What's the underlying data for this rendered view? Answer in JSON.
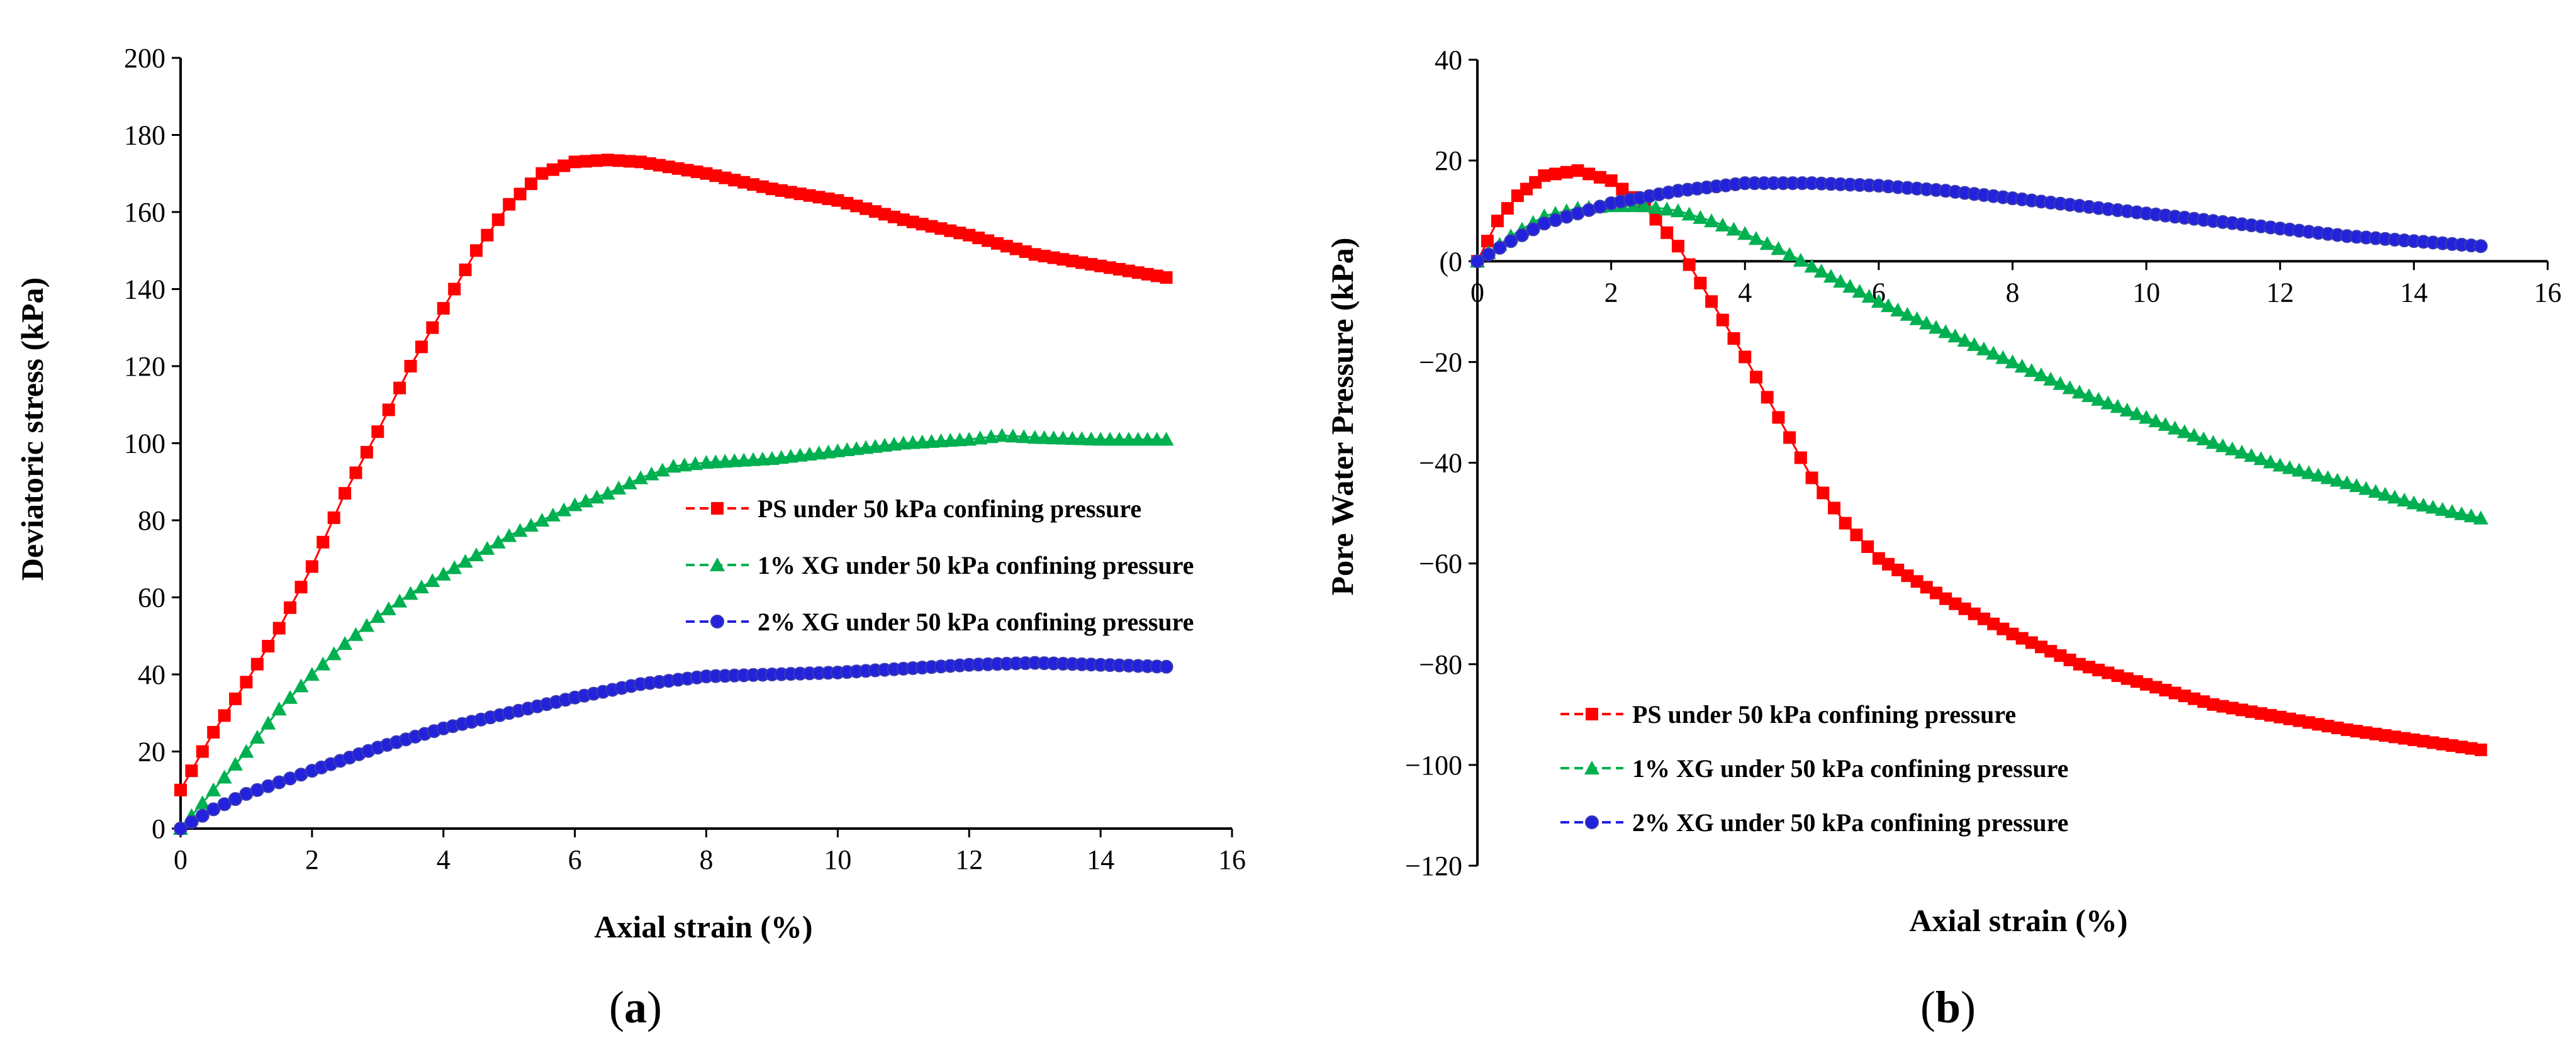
{
  "chart_data": [
    {
      "type": "scatter",
      "panel_label": {
        "open": "(",
        "letter": "a",
        "close": ")"
      },
      "xlabel": "Axial strain (%)",
      "ylabel": "Deviatoric stress (kPa)",
      "xlim": [
        0,
        16
      ],
      "ylim": [
        0,
        200
      ],
      "xticks": [
        0,
        2,
        4,
        6,
        8,
        10,
        12,
        14,
        16
      ],
      "yticks": [
        0,
        20,
        40,
        60,
        80,
        100,
        120,
        140,
        160,
        180,
        200
      ],
      "grid": false,
      "legend_position": "center-right",
      "series": [
        {
          "name": "PS under 50 kPa confining pressure",
          "color": "#ff0000",
          "marker": "square",
          "points": [
            [
              0,
              10
            ],
            [
              0.5,
              25
            ],
            [
              1,
              38
            ],
            [
              1.5,
              52
            ],
            [
              2,
              68
            ],
            [
              2.5,
              87
            ],
            [
              3,
              103
            ],
            [
              3.5,
              120
            ],
            [
              4,
              135
            ],
            [
              4.5,
              150
            ],
            [
              5,
              162
            ],
            [
              5.5,
              170
            ],
            [
              6,
              173
            ],
            [
              6.5,
              173.5
            ],
            [
              7,
              173
            ],
            [
              8,
              170
            ],
            [
              9,
              166
            ],
            [
              10,
              163
            ],
            [
              11,
              158
            ],
            [
              12,
              154
            ],
            [
              13,
              149
            ],
            [
              14,
              146
            ],
            [
              15,
              143
            ]
          ]
        },
        {
          "name": "1% XG under 50 kPa confining pressure",
          "color": "#00b050",
          "marker": "triangle",
          "points": [
            [
              0,
              0
            ],
            [
              0.5,
              10
            ],
            [
              1,
              20
            ],
            [
              1.5,
              31
            ],
            [
              2,
              40
            ],
            [
              2.5,
              48
            ],
            [
              3,
              55
            ],
            [
              3.5,
              61
            ],
            [
              4,
              66
            ],
            [
              4.5,
              71
            ],
            [
              5,
              76
            ],
            [
              5.5,
              80
            ],
            [
              6,
              84
            ],
            [
              6.5,
              87
            ],
            [
              7,
              91
            ],
            [
              7.5,
              94
            ],
            [
              8,
              95
            ],
            [
              9,
              96
            ],
            [
              10,
              98
            ],
            [
              11,
              100
            ],
            [
              12,
              101
            ],
            [
              12.5,
              102
            ],
            [
              13,
              101.5
            ],
            [
              14,
              101
            ],
            [
              15,
              101
            ]
          ]
        },
        {
          "name": "2% XG under 50 kPa confining pressure",
          "color": "#2222dd",
          "marker": "circle",
          "points": [
            [
              0,
              0
            ],
            [
              0.5,
              5
            ],
            [
              1,
              9
            ],
            [
              1.5,
              12
            ],
            [
              2,
              15
            ],
            [
              3,
              21
            ],
            [
              4,
              26
            ],
            [
              5,
              30
            ],
            [
              6,
              34
            ],
            [
              7,
              37.5
            ],
            [
              8,
              39.5
            ],
            [
              9,
              40
            ],
            [
              10,
              40.5
            ],
            [
              11,
              41.5
            ],
            [
              12,
              42.5
            ],
            [
              13,
              43
            ],
            [
              14,
              42.5
            ],
            [
              15,
              42
            ]
          ]
        }
      ]
    },
    {
      "type": "scatter",
      "panel_label": {
        "open": "(",
        "letter": "b",
        "close": ")"
      },
      "xlabel": "Axial strain (%)",
      "ylabel": "Pore Water Pressure (kPa)",
      "xlim": [
        0,
        16
      ],
      "ylim": [
        -120,
        40
      ],
      "xticks": [
        0,
        2,
        4,
        6,
        8,
        10,
        12,
        14,
        16
      ],
      "yticks": [
        40,
        20,
        0,
        -20,
        -40,
        -60,
        -80,
        -100,
        -120
      ],
      "ytick_labels": [
        "40",
        "20",
        "(0",
        "−20",
        "−40",
        "−60",
        "−80",
        "−100",
        "−120"
      ],
      "grid": false,
      "legend_position": "bottom-center",
      "series": [
        {
          "name": "PS under 50 kPa confining pressure",
          "color": "#ff0000",
          "marker": "square",
          "points": [
            [
              0,
              0
            ],
            [
              0.3,
              8
            ],
            [
              0.6,
              13
            ],
            [
              1,
              17
            ],
            [
              1.5,
              18
            ],
            [
              2,
              16
            ],
            [
              2.5,
              11
            ],
            [
              3,
              3
            ],
            [
              3.5,
              -8
            ],
            [
              4,
              -19
            ],
            [
              4.5,
              -31
            ],
            [
              5,
              -43
            ],
            [
              5.5,
              -52
            ],
            [
              6,
              -59
            ],
            [
              7,
              -67
            ],
            [
              8,
              -74
            ],
            [
              9,
              -80
            ],
            [
              10,
              -84
            ],
            [
              11,
              -88
            ],
            [
              12,
              -90.5
            ],
            [
              13,
              -93
            ],
            [
              14,
              -95
            ],
            [
              15,
              -97
            ]
          ]
        },
        {
          "name": "1% XG under 50 kPa confining pressure",
          "color": "#00b050",
          "marker": "triangle",
          "points": [
            [
              0,
              0
            ],
            [
              0.5,
              5
            ],
            [
              1,
              9
            ],
            [
              1.5,
              10.5
            ],
            [
              2,
              11
            ],
            [
              2.5,
              11
            ],
            [
              3,
              10
            ],
            [
              3.5,
              8
            ],
            [
              4,
              5.5
            ],
            [
              4.5,
              2.5
            ],
            [
              5,
              -1
            ],
            [
              6,
              -8
            ],
            [
              7,
              -14
            ],
            [
              8,
              -20
            ],
            [
              9,
              -26
            ],
            [
              10,
              -31
            ],
            [
              11,
              -36
            ],
            [
              12,
              -40.5
            ],
            [
              13,
              -44
            ],
            [
              14,
              -48
            ],
            [
              15,
              -51
            ]
          ]
        },
        {
          "name": "2% XG under 50 kPa confining pressure",
          "color": "#2222dd",
          "marker": "circle",
          "points": [
            [
              0,
              0
            ],
            [
              0.5,
              4
            ],
            [
              1,
              7.5
            ],
            [
              1.5,
              9.5
            ],
            [
              2,
              11.5
            ],
            [
              3,
              14
            ],
            [
              4,
              15.5
            ],
            [
              5,
              15.5
            ],
            [
              6,
              15
            ],
            [
              7,
              14
            ],
            [
              8,
              12.5
            ],
            [
              9,
              11
            ],
            [
              10,
              9.5
            ],
            [
              11,
              8
            ],
            [
              12,
              6.5
            ],
            [
              13,
              5
            ],
            [
              14,
              4
            ],
            [
              15,
              3
            ]
          ]
        }
      ]
    }
  ]
}
